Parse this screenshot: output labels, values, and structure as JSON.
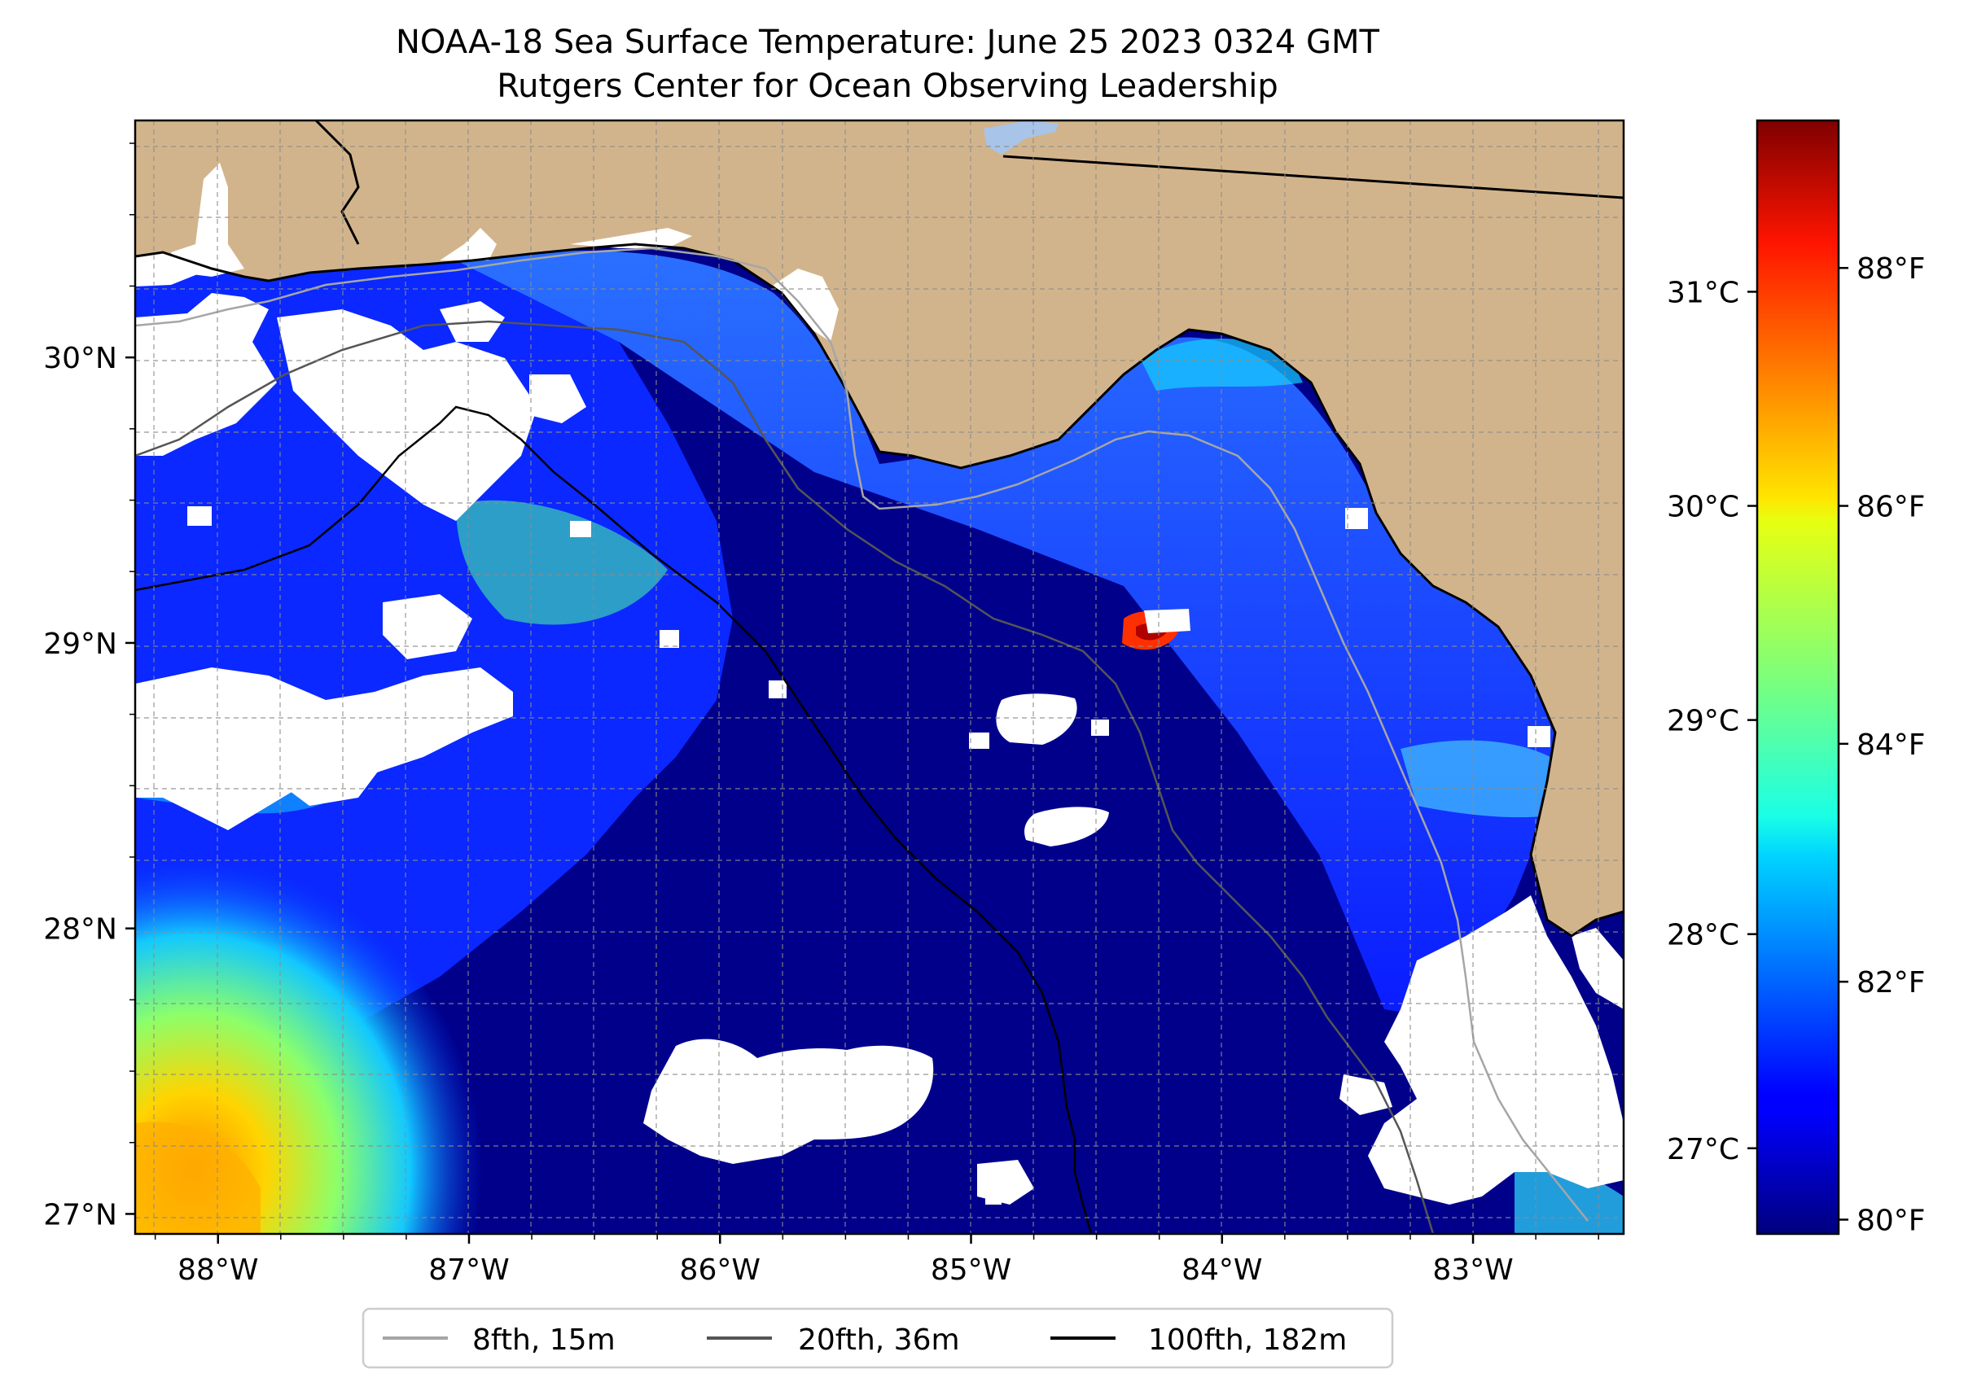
{
  "title": "NOAA-18 Sea Surface Temperature: June 25 2023 0324 GMT",
  "subtitle": "Rutgers Center for Ocean Observing Leadership",
  "map": {
    "lon_range": [
      -88.33,
      -82.4
    ],
    "lat_range": [
      26.93,
      30.83
    ],
    "lon_ticks": [
      {
        "value": -88,
        "label": "88°W"
      },
      {
        "value": -87,
        "label": "87°W"
      },
      {
        "value": -86,
        "label": "86°W"
      },
      {
        "value": -85,
        "label": "85°W"
      },
      {
        "value": -84,
        "label": "84°W"
      },
      {
        "value": -83,
        "label": "83°W"
      }
    ],
    "lat_ticks": [
      {
        "value": 27,
        "label": "27°N"
      },
      {
        "value": 28,
        "label": "28°N"
      },
      {
        "value": 29,
        "label": "29°N"
      },
      {
        "value": 30,
        "label": "30°N"
      }
    ],
    "colors": {
      "land": "#d2b48c",
      "cloud": "#ffffff",
      "deep_water": "#00008b",
      "warm": "#ffd400",
      "lake": "#a8c4e8"
    }
  },
  "colorbar": {
    "colormap": "jet",
    "celsius_range": [
      26.6,
      31.8
    ],
    "celsius_ticks": [
      {
        "value": 27,
        "label": "27°C"
      },
      {
        "value": 28,
        "label": "28°C"
      },
      {
        "value": 29,
        "label": "29°C"
      },
      {
        "value": 30,
        "label": "30°C"
      },
      {
        "value": 31,
        "label": "31°C"
      }
    ],
    "fahrenheit_ticks": [
      {
        "value": 80,
        "label": "80°F"
      },
      {
        "value": 82,
        "label": "82°F"
      },
      {
        "value": 84,
        "label": "84°F"
      },
      {
        "value": 86,
        "label": "86°F"
      },
      {
        "value": 88,
        "label": "88°F"
      }
    ]
  },
  "legend": {
    "placement": "bottom-center",
    "items": [
      {
        "label": "8fth, 15m",
        "color": "#a6a6a6"
      },
      {
        "label": "20fth, 36m",
        "color": "#555555"
      },
      {
        "label": "100fth, 182m",
        "color": "#000000"
      }
    ]
  }
}
